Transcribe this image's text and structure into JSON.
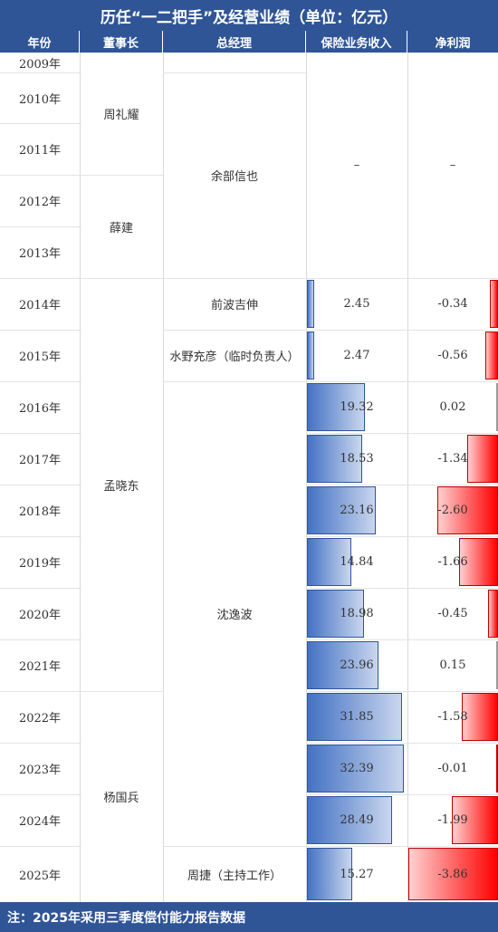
{
  "title": "历任“一二把手”及经营业绩（单位：亿元）",
  "headers": {
    "year": "年份",
    "chairman": "董事长",
    "gm": "总经理",
    "revenue": "保险业务收入",
    "profit": "净利润"
  },
  "years": [
    "2009年",
    "2010年",
    "2011年",
    "2012年",
    "2013年",
    "2014年",
    "2015年",
    "2016年",
    "2017年",
    "2018年",
    "2019年",
    "2020年",
    "2021年",
    "2022年",
    "2023年",
    "2024年",
    "2025年"
  ],
  "chairmen": [
    "周礼耀",
    "薛建",
    "孟晓东",
    "杨国兵"
  ],
  "general_managers": [
    "余部信也",
    "前波吉伸",
    "水野充彦（临时负责人）",
    "沈逸波",
    "周捷（主持工作）"
  ],
  "dash": "–",
  "chart_data": {
    "type": "table",
    "categories": [
      "2014年",
      "2015年",
      "2016年",
      "2017年",
      "2018年",
      "2019年",
      "2020年",
      "2021年",
      "2022年",
      "2023年",
      "2024年",
      "2025年"
    ],
    "series": [
      {
        "name": "保险业务收入",
        "values": [
          2.45,
          2.47,
          19.32,
          18.53,
          23.16,
          14.84,
          18.98,
          23.96,
          31.85,
          32.39,
          28.49,
          15.27
        ]
      },
      {
        "name": "净利润",
        "values": [
          -0.34,
          -0.56,
          0.02,
          -1.34,
          -2.6,
          -1.66,
          -0.45,
          0.15,
          -1.58,
          -0.01,
          -1.99,
          -3.86
        ]
      }
    ],
    "revenue_labels": [
      "2.45",
      "2.47",
      "19.32",
      "18.53",
      "23.16",
      "14.84",
      "18.98",
      "23.96",
      "31.85",
      "32.39",
      "28.49",
      "15.27"
    ],
    "profit_labels": [
      "-0.34",
      "-0.56",
      "0.02",
      "-1.34",
      "-2.60",
      "-1.66",
      "-0.45",
      "0.15",
      "-1.58",
      "-0.01",
      "-1.99",
      "-3.86"
    ],
    "colors": {
      "revenue": "#4472c4",
      "profit": "#ff0000",
      "header": "#2f5597"
    }
  },
  "footer": "注：2025年采用三季度偿付能力报告数据"
}
